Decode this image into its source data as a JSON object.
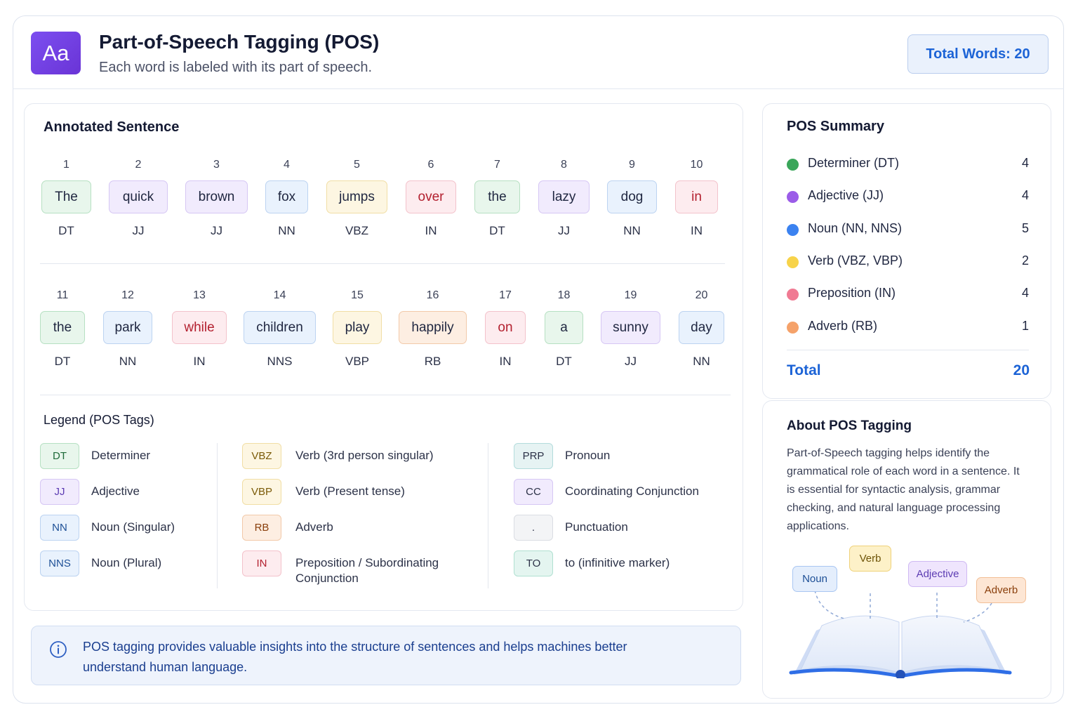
{
  "header": {
    "logo_text": "Aa",
    "title": "Part-of-Speech Tagging (POS)",
    "subtitle": "Each word is labeled with its part of speech.",
    "total_words": "Total Words: 20"
  },
  "annotated": {
    "title": "Annotated Sentence",
    "row1": [
      {
        "idx": "1",
        "word": "The",
        "tag": "DT",
        "color": "dt"
      },
      {
        "idx": "2",
        "word": "quick",
        "tag": "JJ",
        "color": "jj"
      },
      {
        "idx": "3",
        "word": "brown",
        "tag": "JJ",
        "color": "jj"
      },
      {
        "idx": "4",
        "word": "fox",
        "tag": "NN",
        "color": "nn"
      },
      {
        "idx": "5",
        "word": "jumps",
        "tag": "VBZ",
        "color": "vb"
      },
      {
        "idx": "6",
        "word": "over",
        "tag": "IN",
        "color": "in"
      },
      {
        "idx": "7",
        "word": "the",
        "tag": "DT",
        "color": "dt"
      },
      {
        "idx": "8",
        "word": "lazy",
        "tag": "JJ",
        "color": "jj"
      },
      {
        "idx": "9",
        "word": "dog",
        "tag": "NN",
        "color": "nn"
      },
      {
        "idx": "10",
        "word": "in",
        "tag": "IN",
        "color": "in"
      }
    ],
    "row2": [
      {
        "idx": "11",
        "word": "the",
        "tag": "DT",
        "color": "dt"
      },
      {
        "idx": "12",
        "word": "park",
        "tag": "NN",
        "color": "nn"
      },
      {
        "idx": "13",
        "word": "while",
        "tag": "IN",
        "color": "in"
      },
      {
        "idx": "14",
        "word": "children",
        "tag": "NNS",
        "color": "nn"
      },
      {
        "idx": "15",
        "word": "play",
        "tag": "VBP",
        "color": "vb"
      },
      {
        "idx": "16",
        "word": "happily",
        "tag": "RB",
        "color": "rb"
      },
      {
        "idx": "17",
        "word": "on",
        "tag": "IN",
        "color": "in"
      },
      {
        "idx": "18",
        "word": "a",
        "tag": "DT",
        "color": "dt"
      },
      {
        "idx": "19",
        "word": "sunny",
        "tag": "JJ",
        "color": "jj"
      },
      {
        "idx": "20",
        "word": "day",
        "tag": "NN",
        "color": "nn"
      }
    ]
  },
  "legend": {
    "title": "Legend (POS Tags)",
    "col1": [
      {
        "tag": "DT",
        "label": "Determiner",
        "color": "dt"
      },
      {
        "tag": "JJ",
        "label": "Adjective",
        "color": "jj"
      },
      {
        "tag": "NN",
        "label": "Noun (Singular)",
        "color": "nn"
      },
      {
        "tag": "NNS",
        "label": "Noun (Plural)",
        "color": "nn"
      }
    ],
    "col2": [
      {
        "tag": "VBZ",
        "label": "Verb (3rd person singular)",
        "color": "vb"
      },
      {
        "tag": "VBP",
        "label": "Verb (Present tense)",
        "color": "vb"
      },
      {
        "tag": "RB",
        "label": "Adverb",
        "color": "rb"
      },
      {
        "tag": "IN",
        "label": "Preposition / Subordinating Conjunction",
        "color": "in"
      }
    ],
    "col3": [
      {
        "tag": "PRP",
        "label": "Pronoun",
        "color": "prp"
      },
      {
        "tag": "CC",
        "label": "Coordinating Conjunction",
        "color": "cc"
      },
      {
        "tag": ".",
        "label": "Punctuation",
        "color": "pu"
      },
      {
        "tag": "TO",
        "label": "to (infinitive marker)",
        "color": "to"
      }
    ]
  },
  "info": {
    "icon": "info-icon",
    "text": "POS tagging provides valuable insights into the structure of sentences and helps machines better understand human language."
  },
  "summary": {
    "title": "POS Summary",
    "items": [
      {
        "label": "Determiner (DT)",
        "count": "4",
        "color": "#3aa65a"
      },
      {
        "label": "Adjective (JJ)",
        "count": "4",
        "color": "#9b5ce8"
      },
      {
        "label": "Noun (NN, NNS)",
        "count": "5",
        "color": "#3b82f0"
      },
      {
        "label": "Verb (VBZ, VBP)",
        "count": "2",
        "color": "#f7d34a"
      },
      {
        "label": "Preposition (IN)",
        "count": "4",
        "color": "#f07a93"
      },
      {
        "label": "Adverb (RB)",
        "count": "1",
        "color": "#f5a26a"
      }
    ],
    "total_label": "Total",
    "total_value": "20"
  },
  "about": {
    "title": "About POS Tagging",
    "text": "Part-of-Speech tagging helps identify the grammatical role of each word in a sentence. It is essential for syntactic analysis, grammar checking, and natural language processing applications.",
    "illustration": {
      "icon": "open-book-icon",
      "bubbles": [
        "Noun",
        "Verb",
        "Adjective",
        "Adverb"
      ]
    }
  }
}
